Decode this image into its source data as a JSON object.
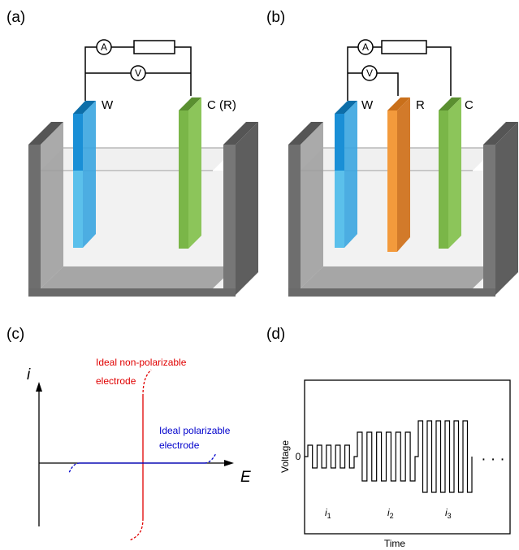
{
  "panels": [
    {
      "label": "(a)",
      "ammeter": "A",
      "voltmeter": "V",
      "electrodes": [
        "W",
        "C (R)"
      ]
    },
    {
      "label": "(b)",
      "ammeter": "A",
      "voltmeter": "V",
      "electrodes": [
        "W",
        "R",
        "C"
      ]
    },
    {
      "label": "(c)",
      "y_axis": "i",
      "x_axis": "E",
      "curves": [
        {
          "label": [
            "Ideal non-polarizable",
            "electrode"
          ]
        },
        {
          "label": [
            "Ideal polarizable",
            "electrode"
          ]
        }
      ]
    },
    {
      "label": "(d)",
      "y_axis": "Voltage",
      "x_axis": "Time",
      "zero": "0",
      "segments": [
        {
          "base": "i",
          "sub": "1"
        },
        {
          "base": "i",
          "sub": "2"
        },
        {
          "base": "i",
          "sub": "3"
        }
      ],
      "ellipsis": "· · ·"
    }
  ]
}
